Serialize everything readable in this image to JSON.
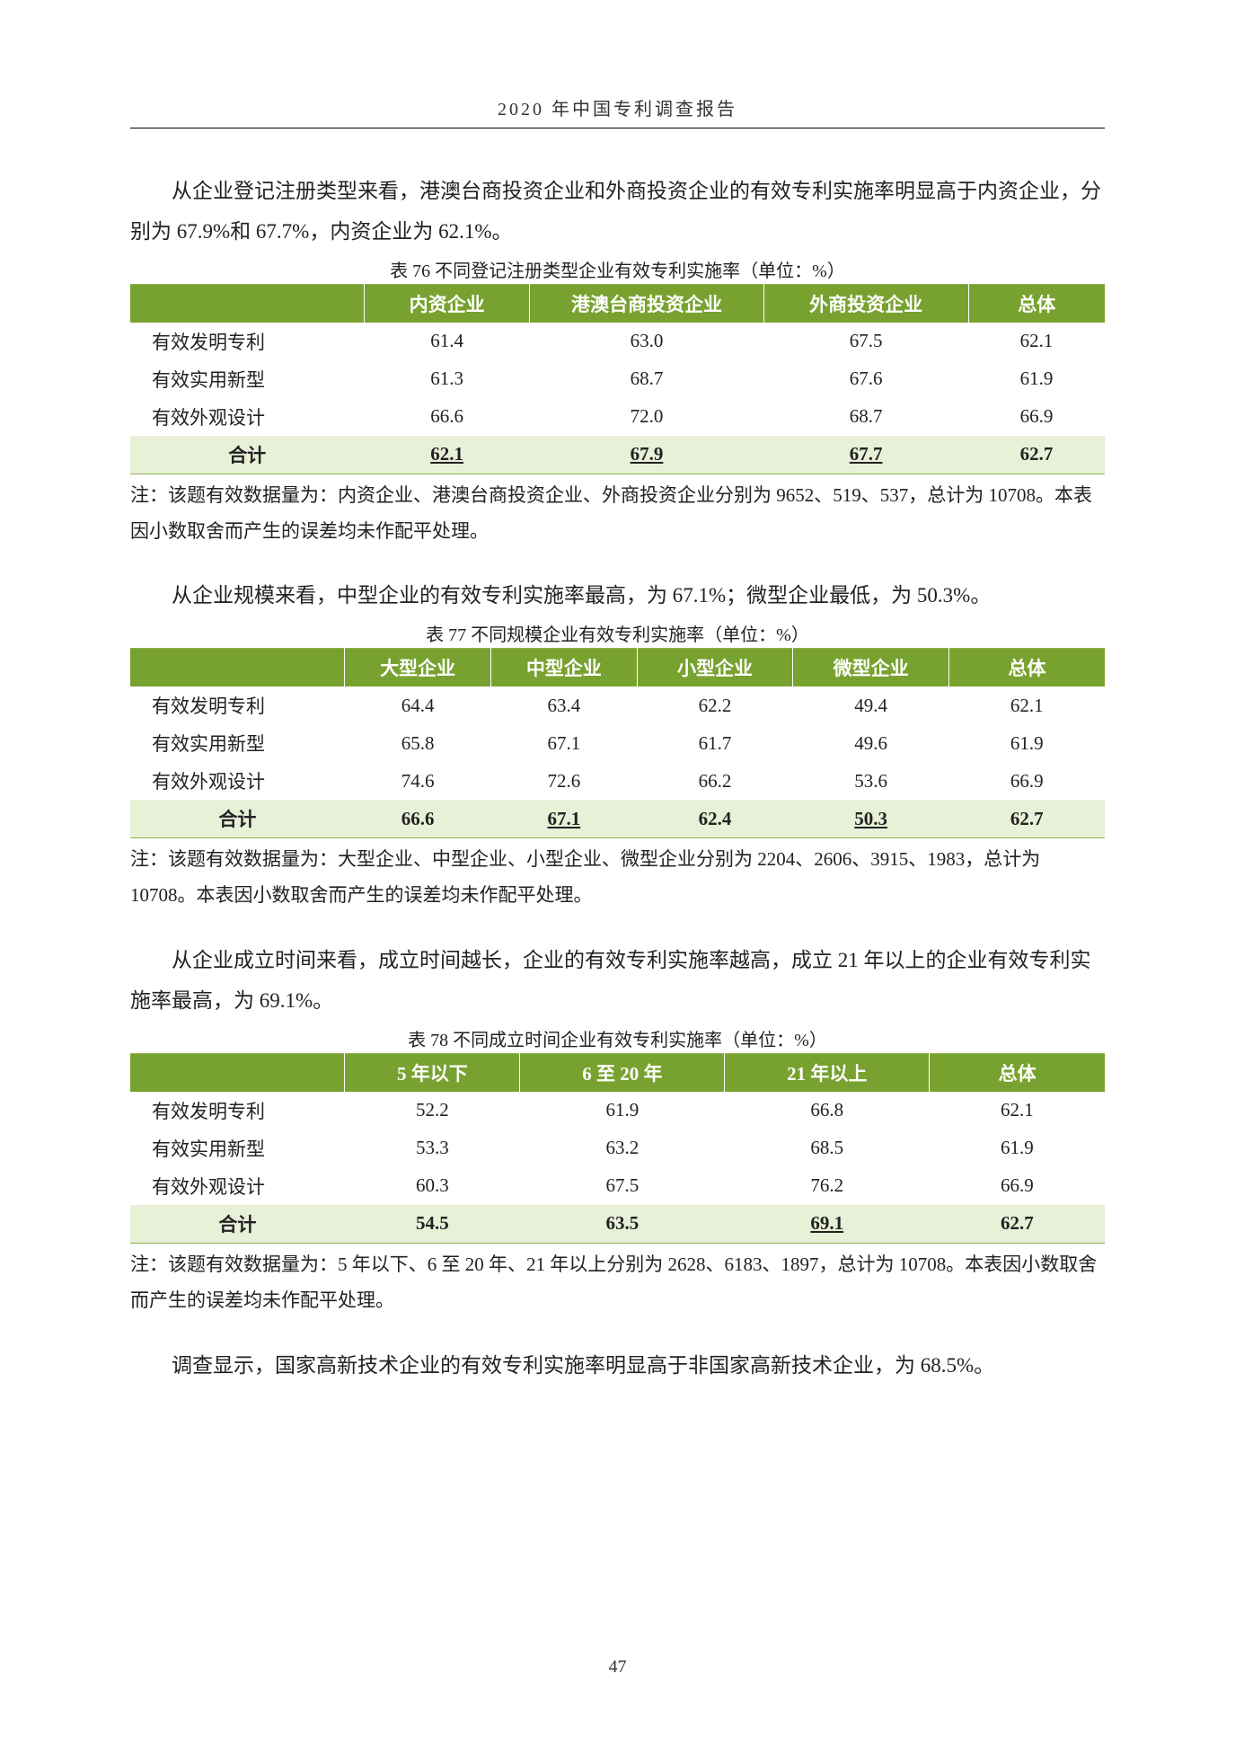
{
  "header": {
    "title": "2020 年中国专利调查报告"
  },
  "section1": {
    "para": "从企业登记注册类型来看，港澳台商投资企业和外商投资企业的有效专利实施率明显高于内资企业，分别为 67.9%和 67.7%，内资企业为 62.1%。",
    "caption": "表 76  不同登记注册类型企业有效专利实施率（单位：%）",
    "columns": [
      "",
      "内资企业",
      "港澳台商投资企业",
      "外商投资企业",
      "总体"
    ],
    "col_widths": [
      "24%",
      "17%",
      "24%",
      "21%",
      "14%"
    ],
    "rows": [
      {
        "label": "有效发明专利",
        "vals": [
          "61.4",
          "63.0",
          "67.5",
          "62.1"
        ],
        "ul": [
          false,
          false,
          false,
          false
        ]
      },
      {
        "label": "有效实用新型",
        "vals": [
          "61.3",
          "68.7",
          "67.6",
          "61.9"
        ],
        "ul": [
          false,
          false,
          false,
          false
        ]
      },
      {
        "label": "有效外观设计",
        "vals": [
          "66.6",
          "72.0",
          "68.7",
          "66.9"
        ],
        "ul": [
          false,
          false,
          false,
          false
        ]
      }
    ],
    "total": {
      "label": "合计",
      "vals": [
        "62.1",
        "67.9",
        "67.7",
        "62.7"
      ],
      "ul": [
        true,
        true,
        true,
        false
      ]
    },
    "note": "注：该题有效数据量为：内资企业、港澳台商投资企业、外商投资企业分别为 9652、519、537，总计为 10708。本表因小数取舍而产生的误差均未作配平处理。"
  },
  "section2": {
    "para": "从企业规模来看，中型企业的有效专利实施率最高，为 67.1%；微型企业最低，为 50.3%。",
    "caption": "表 77  不同规模企业有效专利实施率（单位：%）",
    "columns": [
      "",
      "大型企业",
      "中型企业",
      "小型企业",
      "微型企业",
      "总体"
    ],
    "col_widths": [
      "22%",
      "15%",
      "15%",
      "16%",
      "16%",
      "16%"
    ],
    "rows": [
      {
        "label": "有效发明专利",
        "vals": [
          "64.4",
          "63.4",
          "62.2",
          "49.4",
          "62.1"
        ],
        "ul": [
          false,
          false,
          false,
          false,
          false
        ]
      },
      {
        "label": "有效实用新型",
        "vals": [
          "65.8",
          "67.1",
          "61.7",
          "49.6",
          "61.9"
        ],
        "ul": [
          false,
          false,
          false,
          false,
          false
        ]
      },
      {
        "label": "有效外观设计",
        "vals": [
          "74.6",
          "72.6",
          "66.2",
          "53.6",
          "66.9"
        ],
        "ul": [
          false,
          false,
          false,
          false,
          false
        ]
      }
    ],
    "total": {
      "label": "合计",
      "vals": [
        "66.6",
        "67.1",
        "62.4",
        "50.3",
        "62.7"
      ],
      "ul": [
        false,
        true,
        false,
        true,
        false
      ]
    },
    "note": "注：该题有效数据量为：大型企业、中型企业、小型企业、微型企业分别为 2204、2606、3915、1983，总计为 10708。本表因小数取舍而产生的误差均未作配平处理。"
  },
  "section3": {
    "para": "从企业成立时间来看，成立时间越长，企业的有效专利实施率越高，成立 21 年以上的企业有效专利实施率最高，为 69.1%。",
    "caption": "表 78  不同成立时间企业有效专利实施率（单位：%）",
    "columns": [
      "",
      "5 年以下",
      "6 至 20 年",
      "21 年以上",
      "总体"
    ],
    "col_widths": [
      "22%",
      "18%",
      "21%",
      "21%",
      "18%"
    ],
    "rows": [
      {
        "label": "有效发明专利",
        "vals": [
          "52.2",
          "61.9",
          "66.8",
          "62.1"
        ],
        "ul": [
          false,
          false,
          false,
          false
        ]
      },
      {
        "label": "有效实用新型",
        "vals": [
          "53.3",
          "63.2",
          "68.5",
          "61.9"
        ],
        "ul": [
          false,
          false,
          false,
          false
        ]
      },
      {
        "label": "有效外观设计",
        "vals": [
          "60.3",
          "67.5",
          "76.2",
          "66.9"
        ],
        "ul": [
          false,
          false,
          false,
          false
        ]
      }
    ],
    "total": {
      "label": "合计",
      "vals": [
        "54.5",
        "63.5",
        "69.1",
        "62.7"
      ],
      "ul": [
        false,
        false,
        true,
        false
      ]
    },
    "note": "注：该题有效数据量为：5 年以下、6 至 20 年、21 年以上分别为 2628、6183、1897，总计为 10708。本表因小数取舍而产生的误差均未作配平处理。"
  },
  "section4": {
    "para": "调查显示，国家高新技术企业的有效专利实施率明显高于非国家高新技术企业，为 68.5%。"
  },
  "page_number": "47",
  "colors": {
    "header_bg": "#78a22f",
    "header_text": "#ffffff",
    "total_bg": "#e8f0d8",
    "table_border": "#8fb04f"
  }
}
